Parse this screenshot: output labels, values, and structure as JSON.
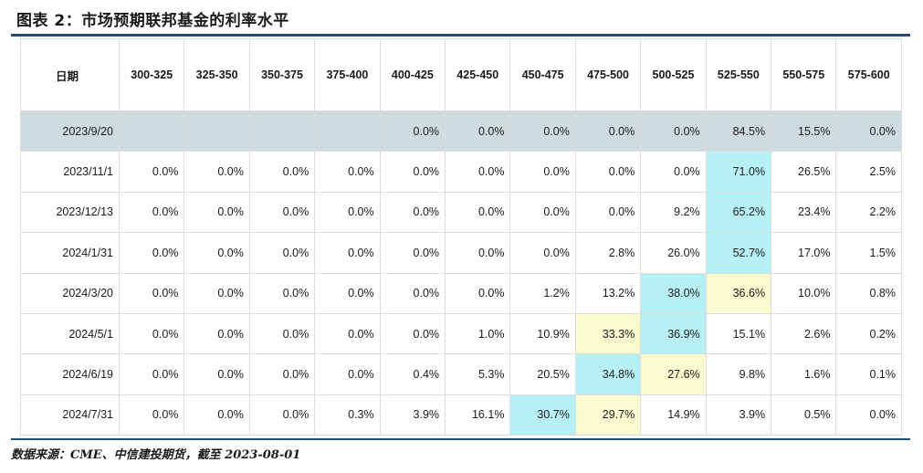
{
  "title": "图表 2：市场预期联邦基金的利率水平",
  "source": "数据来源：CME、中信建投期货，截至 2023-08-01",
  "table": {
    "date_header": "日期",
    "columns": [
      "300-325",
      "325-350",
      "350-375",
      "375-400",
      "400-425",
      "425-450",
      "450-475",
      "475-500",
      "500-525",
      "525-550",
      "550-575",
      "575-600"
    ],
    "rows": [
      {
        "date": "2023/9/20",
        "values": [
          "",
          "",
          "",
          "",
          "0.0%",
          "0.0%",
          "0.0%",
          "0.0%",
          "0.0%",
          "84.5%",
          "15.5%",
          "0.0%"
        ]
      },
      {
        "date": "2023/11/1",
        "values": [
          "0.0%",
          "0.0%",
          "0.0%",
          "0.0%",
          "0.0%",
          "0.0%",
          "0.0%",
          "0.0%",
          "0.0%",
          "71.0%",
          "26.5%",
          "2.5%"
        ]
      },
      {
        "date": "2023/12/13",
        "values": [
          "0.0%",
          "0.0%",
          "0.0%",
          "0.0%",
          "0.0%",
          "0.0%",
          "0.0%",
          "0.0%",
          "9.2%",
          "65.2%",
          "23.4%",
          "2.2%"
        ]
      },
      {
        "date": "2024/1/31",
        "values": [
          "0.0%",
          "0.0%",
          "0.0%",
          "0.0%",
          "0.0%",
          "0.0%",
          "0.0%",
          "2.8%",
          "26.0%",
          "52.7%",
          "17.0%",
          "1.5%"
        ]
      },
      {
        "date": "2024/3/20",
        "values": [
          "0.0%",
          "0.0%",
          "0.0%",
          "0.0%",
          "0.0%",
          "0.0%",
          "1.2%",
          "13.2%",
          "38.0%",
          "36.6%",
          "10.0%",
          "0.8%"
        ]
      },
      {
        "date": "2024/5/1",
        "values": [
          "0.0%",
          "0.0%",
          "0.0%",
          "0.0%",
          "0.0%",
          "1.0%",
          "10.9%",
          "33.3%",
          "36.9%",
          "15.1%",
          "2.6%",
          "0.2%"
        ]
      },
      {
        "date": "2024/6/19",
        "values": [
          "0.0%",
          "0.0%",
          "0.0%",
          "0.0%",
          "0.4%",
          "5.3%",
          "20.5%",
          "34.8%",
          "27.6%",
          "9.8%",
          "1.6%",
          "0.1%"
        ]
      },
      {
        "date": "2024/7/31",
        "values": [
          "0.0%",
          "0.0%",
          "0.0%",
          "0.3%",
          "3.9%",
          "16.1%",
          "30.7%",
          "29.7%",
          "14.9%",
          "3.9%",
          "0.5%",
          "0.0%"
        ]
      }
    ]
  },
  "colors": {
    "rule": "#1f4e79",
    "shaded_row": "#cfdcdf",
    "highlight_top": "#b8f0f8",
    "highlight_second": "#fafad0"
  }
}
